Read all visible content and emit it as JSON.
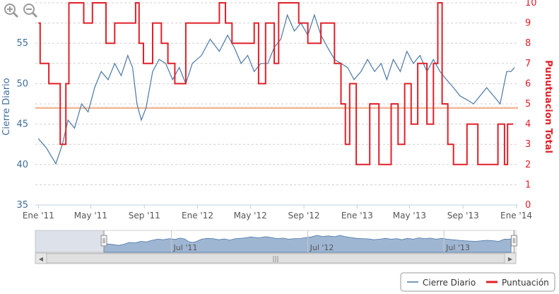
{
  "chart_data": {
    "type": "line",
    "left_axis": {
      "label": "Cierre Diario",
      "range": [
        35,
        60
      ],
      "ticks": [
        "35",
        "40",
        "45",
        "50",
        "55"
      ],
      "color": "#3f6e9e"
    },
    "right_axis": {
      "label": "Punutuacion Total",
      "range": [
        0,
        10
      ],
      "ticks": [
        "0",
        "1",
        "2",
        "3",
        "4",
        "5",
        "6",
        "7",
        "8",
        "9",
        "10"
      ],
      "color": "#e0202a"
    },
    "x_axis": {
      "range": [
        "2010-12-25",
        "2014-01-05"
      ],
      "tick_labels": [
        "Ene '11",
        "May '11",
        "Sep '11",
        "Ene '12",
        "May '12",
        "Sep '12",
        "Ene '13",
        "May '13",
        "Sep '13",
        "Ene '14"
      ],
      "tick_dates": [
        "2011-01-01",
        "2011-05-01",
        "2011-09-01",
        "2012-01-01",
        "2012-05-01",
        "2012-09-01",
        "2013-01-01",
        "2013-05-01",
        "2013-09-01",
        "2014-01-01"
      ]
    },
    "reference_line": {
      "axis": "right",
      "value": 4.8,
      "color": "#f0b898"
    },
    "grid": true,
    "legend_position": "bottom-right",
    "series": [
      {
        "name": "Cierre Diario",
        "axis": "left",
        "color": "#4a77a8",
        "points": [
          [
            "2011-01-01",
            43.2
          ],
          [
            "2011-01-20",
            42.0
          ],
          [
            "2011-02-10",
            40.1
          ],
          [
            "2011-02-25",
            42.5
          ],
          [
            "2011-03-10",
            45.5
          ],
          [
            "2011-03-25",
            44.5
          ],
          [
            "2011-04-10",
            47.5
          ],
          [
            "2011-04-25",
            46.5
          ],
          [
            "2011-05-10",
            49.5
          ],
          [
            "2011-05-25",
            51.5
          ],
          [
            "2011-06-10",
            50.5
          ],
          [
            "2011-06-25",
            52.5
          ],
          [
            "2011-07-10",
            51.0
          ],
          [
            "2011-07-25",
            53.5
          ],
          [
            "2011-08-05",
            52.0
          ],
          [
            "2011-08-15",
            47.5
          ],
          [
            "2011-08-25",
            45.5
          ],
          [
            "2011-09-05",
            47.0
          ],
          [
            "2011-09-20",
            51.5
          ],
          [
            "2011-10-05",
            53.0
          ],
          [
            "2011-10-20",
            52.5
          ],
          [
            "2011-11-05",
            50.5
          ],
          [
            "2011-11-20",
            52.0
          ],
          [
            "2011-12-05",
            50.0
          ],
          [
            "2011-12-20",
            52.5
          ],
          [
            "2012-01-10",
            53.5
          ],
          [
            "2012-01-30",
            55.5
          ],
          [
            "2012-02-20",
            54.0
          ],
          [
            "2012-03-10",
            56.0
          ],
          [
            "2012-03-25",
            54.5
          ],
          [
            "2012-04-10",
            52.5
          ],
          [
            "2012-04-25",
            53.5
          ],
          [
            "2012-05-10",
            51.5
          ],
          [
            "2012-05-25",
            52.5
          ],
          [
            "2012-06-10",
            52.5
          ],
          [
            "2012-06-25",
            54.5
          ],
          [
            "2012-07-10",
            55.5
          ],
          [
            "2012-07-25",
            58.5
          ],
          [
            "2012-08-10",
            56.5
          ],
          [
            "2012-08-25",
            57.5
          ],
          [
            "2012-09-10",
            56.0
          ],
          [
            "2012-09-25",
            58.5
          ],
          [
            "2012-10-10",
            56.0
          ],
          [
            "2012-10-25",
            54.5
          ],
          [
            "2012-11-10",
            53.0
          ],
          [
            "2012-11-25",
            52.5
          ],
          [
            "2012-12-10",
            52.0
          ],
          [
            "2012-12-25",
            50.5
          ],
          [
            "2013-01-10",
            51.5
          ],
          [
            "2013-01-25",
            53.0
          ],
          [
            "2013-02-10",
            51.5
          ],
          [
            "2013-02-25",
            52.5
          ],
          [
            "2013-03-10",
            50.5
          ],
          [
            "2013-03-25",
            53.0
          ],
          [
            "2013-04-10",
            51.5
          ],
          [
            "2013-04-25",
            54.0
          ],
          [
            "2013-05-10",
            52.5
          ],
          [
            "2013-05-25",
            53.5
          ],
          [
            "2013-06-10",
            51.5
          ],
          [
            "2013-06-25",
            53.0
          ],
          [
            "2013-07-10",
            51.5
          ],
          [
            "2013-07-25",
            50.5
          ],
          [
            "2013-08-10",
            49.5
          ],
          [
            "2013-08-25",
            48.5
          ],
          [
            "2013-09-10",
            48.0
          ],
          [
            "2013-09-25",
            47.5
          ],
          [
            "2013-10-10",
            48.5
          ],
          [
            "2013-10-25",
            49.5
          ],
          [
            "2013-11-10",
            48.5
          ],
          [
            "2013-11-25",
            47.5
          ],
          [
            "2013-12-10",
            51.5
          ],
          [
            "2013-12-20",
            51.5
          ],
          [
            "2013-12-28",
            52.0
          ]
        ]
      },
      {
        "name": "Puntuación",
        "axis": "right",
        "color": "#e0202a",
        "steps": [
          [
            "2011-01-01",
            9
          ],
          [
            "2011-01-05",
            7
          ],
          [
            "2011-01-25",
            6
          ],
          [
            "2011-02-20",
            3
          ],
          [
            "2011-03-05",
            6
          ],
          [
            "2011-03-12",
            10
          ],
          [
            "2011-04-15",
            9
          ],
          [
            "2011-05-05",
            10
          ],
          [
            "2011-06-05",
            8
          ],
          [
            "2011-06-25",
            9
          ],
          [
            "2011-08-12",
            10
          ],
          [
            "2011-08-20",
            8
          ],
          [
            "2011-08-30",
            7
          ],
          [
            "2011-09-20",
            9
          ],
          [
            "2011-10-10",
            8
          ],
          [
            "2011-10-25",
            7
          ],
          [
            "2011-11-10",
            6
          ],
          [
            "2011-12-05",
            9
          ],
          [
            "2012-02-20",
            10
          ],
          [
            "2012-03-05",
            9
          ],
          [
            "2012-03-20",
            8
          ],
          [
            "2012-05-10",
            9
          ],
          [
            "2012-05-20",
            6
          ],
          [
            "2012-06-05",
            9
          ],
          [
            "2012-06-25",
            7
          ],
          [
            "2012-07-05",
            10
          ],
          [
            "2012-08-20",
            9
          ],
          [
            "2012-09-10",
            8
          ],
          [
            "2012-10-10",
            9
          ],
          [
            "2012-11-10",
            7
          ],
          [
            "2012-11-25",
            5
          ],
          [
            "2012-12-05",
            3
          ],
          [
            "2012-12-15",
            6
          ],
          [
            "2012-12-30",
            2
          ],
          [
            "2013-01-30",
            5
          ],
          [
            "2013-02-20",
            2
          ],
          [
            "2013-03-20",
            5
          ],
          [
            "2013-04-05",
            3
          ],
          [
            "2013-04-20",
            6
          ],
          [
            "2013-05-05",
            4
          ],
          [
            "2013-05-20",
            7
          ],
          [
            "2013-06-10",
            4
          ],
          [
            "2013-06-25",
            7
          ],
          [
            "2013-07-05",
            10
          ],
          [
            "2013-07-15",
            5
          ],
          [
            "2013-07-28",
            3
          ],
          [
            "2013-08-10",
            2
          ],
          [
            "2013-09-10",
            4
          ],
          [
            "2013-10-05",
            2
          ],
          [
            "2013-11-20",
            4
          ],
          [
            "2013-12-05",
            2
          ],
          [
            "2013-12-12",
            4
          ],
          [
            "2013-12-25",
            4
          ]
        ]
      }
    ]
  },
  "navigator": {
    "labels": [
      "Jul '11",
      "Jul '12",
      "Jul '13"
    ],
    "label_dates": [
      "2011-07-01",
      "2012-07-01",
      "2013-07-01"
    ],
    "range": [
      "2010-07-01",
      "2014-01-10"
    ],
    "selected": [
      "2011-01-01",
      "2014-01-05"
    ],
    "fill_color": "#9fb6d3",
    "scroll_left_arrow": "◀",
    "scroll_right_arrow": "▶",
    "scroll_grip": "|||"
  },
  "legend": {
    "items": [
      {
        "label": "Cierre Diario",
        "color": "#4a77a8"
      },
      {
        "label": "Puntuación",
        "color": "#e0202a"
      }
    ]
  },
  "toolbar": {
    "zoom_in_icon": "zoom-in-icon",
    "zoom_out_icon": "zoom-out-icon"
  }
}
